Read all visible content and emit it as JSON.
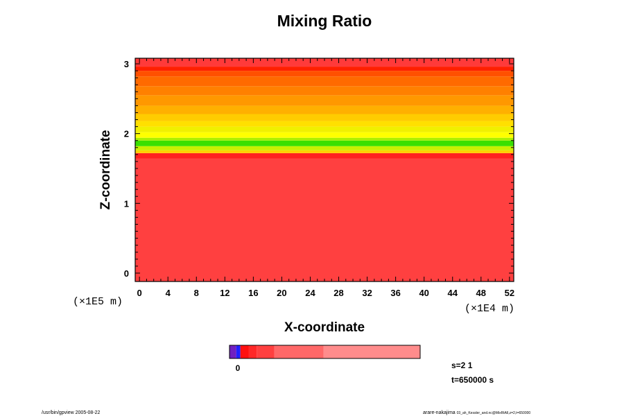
{
  "chart_data": {
    "type": "heatmap",
    "title": "Mixing Ratio",
    "xlabel": "X-coordinate",
    "ylabel": "Z-coordinate",
    "x_scale_label": "(×1E4 m)",
    "y_scale_label": "(×1E5 m)",
    "xlim": [
      -0.6,
      52.6
    ],
    "ylim": [
      -0.12,
      3.08
    ],
    "x_ticks": [
      0,
      4,
      8,
      12,
      16,
      20,
      24,
      28,
      32,
      36,
      40,
      44,
      48,
      52
    ],
    "x_tick_labels": [
      "0",
      "4",
      "8",
      "12",
      "16",
      "20",
      "24",
      "28",
      "32",
      "36",
      "40",
      "44",
      "48",
      "52"
    ],
    "y_ticks": [
      0,
      1,
      2,
      3
    ],
    "y_tick_labels": [
      "0",
      "1",
      "2",
      "3"
    ],
    "bands": [
      {
        "z0": -0.12,
        "z1": 1.64,
        "color": "#ff4040"
      },
      {
        "z0": 1.64,
        "z1": 1.72,
        "color": "#ff2020"
      },
      {
        "z0": 1.72,
        "z1": 1.76,
        "color": "#ffd000"
      },
      {
        "z0": 1.76,
        "z1": 1.82,
        "color": "#c8f000"
      },
      {
        "z0": 1.82,
        "z1": 1.9,
        "color": "#39e000"
      },
      {
        "z0": 1.9,
        "z1": 1.94,
        "color": "#aaf000"
      },
      {
        "z0": 1.94,
        "z1": 2.02,
        "color": "#ffff00"
      },
      {
        "z0": 2.02,
        "z1": 2.1,
        "color": "#f0f000"
      },
      {
        "z0": 2.1,
        "z1": 2.18,
        "color": "#ffe000"
      },
      {
        "z0": 2.18,
        "z1": 2.28,
        "color": "#ffcc00"
      },
      {
        "z0": 2.28,
        "z1": 2.4,
        "color": "#ffb000"
      },
      {
        "z0": 2.4,
        "z1": 2.55,
        "color": "#ff9800"
      },
      {
        "z0": 2.55,
        "z1": 2.68,
        "color": "#ff8000"
      },
      {
        "z0": 2.68,
        "z1": 2.82,
        "color": "#ff6a00"
      },
      {
        "z0": 2.82,
        "z1": 2.9,
        "color": "#ff5000"
      },
      {
        "z0": 2.9,
        "z1": 2.96,
        "color": "#ff2000"
      },
      {
        "z0": 2.96,
        "z1": 3.08,
        "color": "#ff3a3a"
      }
    ],
    "colorbar": {
      "segments": [
        {
          "color": "#7020c0",
          "weight": 1
        },
        {
          "color": "#2020ff",
          "weight": 0.6
        },
        {
          "color": "#ff1010",
          "weight": 1.2
        },
        {
          "color": "#ff2828",
          "weight": 1.2
        },
        {
          "color": "#ff4040",
          "weight": 2.6
        },
        {
          "color": "#ff6868",
          "weight": 7.2
        },
        {
          "color": "#ff8c8c",
          "weight": 14.2
        },
        {
          "color": "#ffa0a0",
          "weight": 0
        }
      ],
      "tick_label": "0"
    },
    "annotations": {
      "s": "s=2 1",
      "t": "t=650000 s"
    }
  },
  "footer": {
    "left": "/usr/bin/gpview 2005-08-22",
    "right_name": "arare-nakajima",
    "right_file": "03_ah_Kessler_and.nc@MixRtAll,z=2,t=650000"
  }
}
